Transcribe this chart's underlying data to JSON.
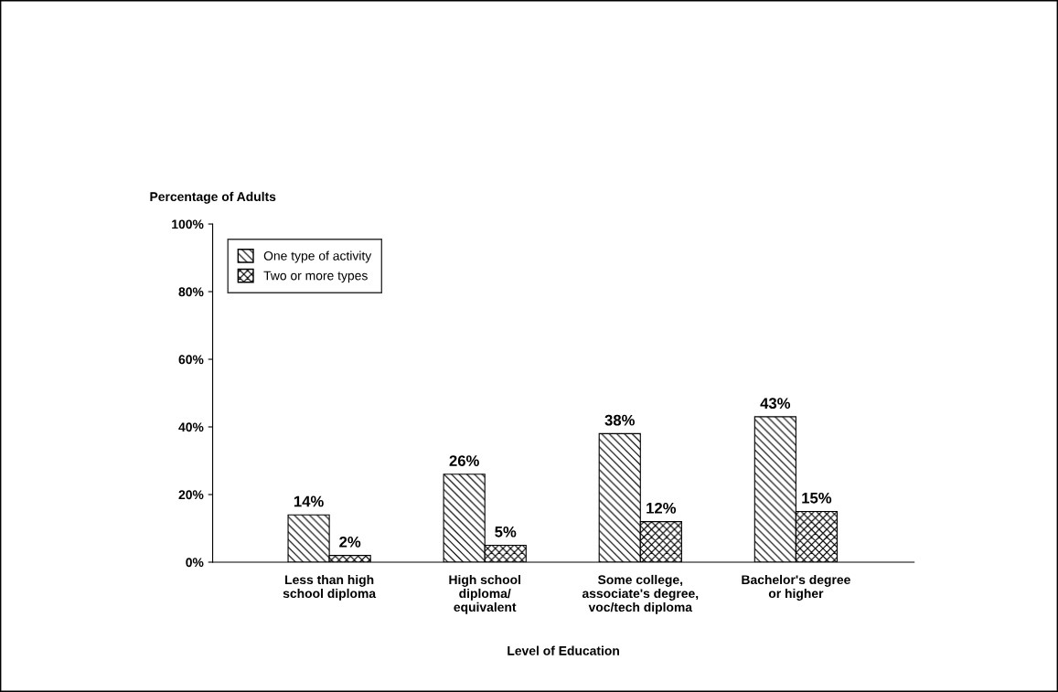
{
  "chart_data": {
    "type": "bar",
    "ylabel": "Percentage of Adults",
    "xlabel": "Level of Education",
    "categories": [
      "Less than high\nschool diploma",
      "High school\ndiploma/\nequivalent",
      "Some college,\nassociate's degree,\nvoc/tech diploma",
      "Bachelor's degree\nor higher"
    ],
    "series": [
      {
        "name": "One type of activity",
        "color": "#000000",
        "values": [
          14,
          26,
          38,
          43
        ],
        "value_labels": [
          "14%",
          "26%",
          "38%",
          "43%"
        ]
      },
      {
        "name": "Two or more types",
        "color": "#000000",
        "values": [
          2,
          5,
          12,
          15
        ],
        "value_labels": [
          "2%",
          "5%",
          "12%",
          "15%"
        ]
      }
    ],
    "ylim": [
      0,
      100
    ],
    "yticks": [
      {
        "value": 0,
        "label": "0%"
      },
      {
        "value": 20,
        "label": "20%"
      },
      {
        "value": 40,
        "label": "40%"
      },
      {
        "value": 60,
        "label": "60%"
      },
      {
        "value": 80,
        "label": "80%"
      },
      {
        "value": 100,
        "label": "100%"
      }
    ],
    "grid": false,
    "legend": "top left"
  }
}
